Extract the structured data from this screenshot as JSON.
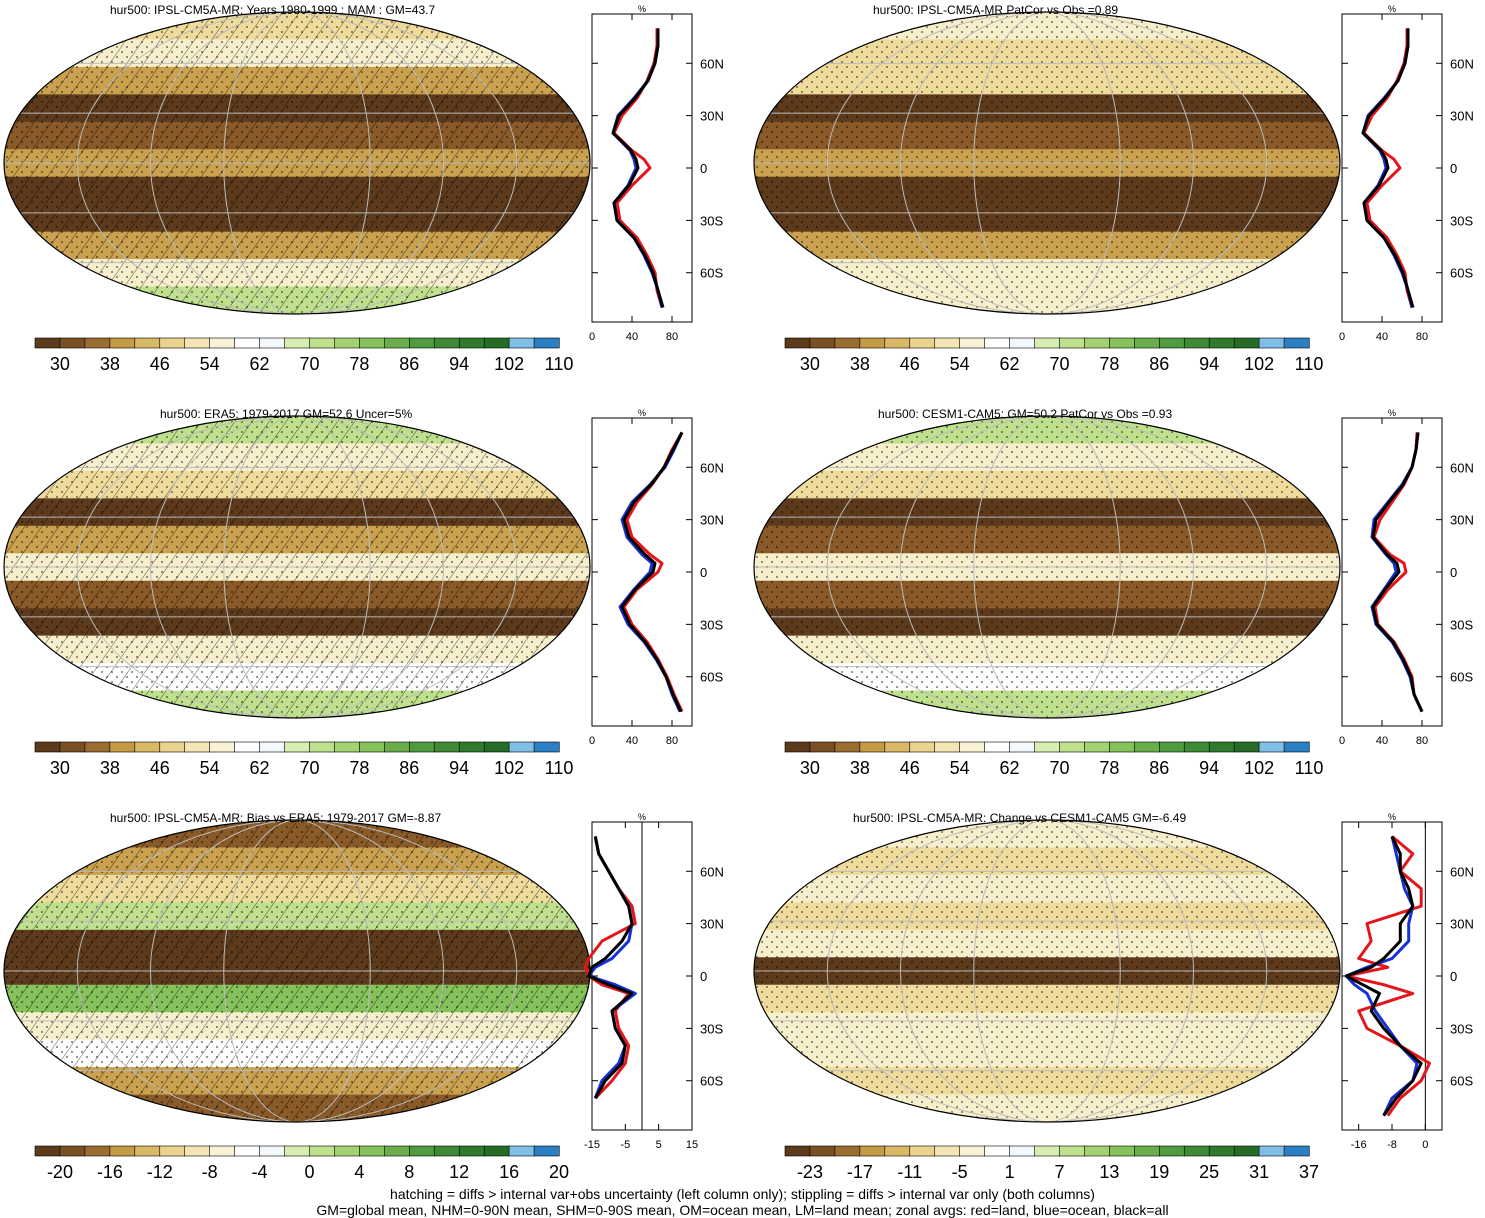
{
  "colors": {
    "brown_dark": "#5c3a1b",
    "brown_mid": "#8a5a28",
    "tan": "#c9a14f",
    "beige": "#efdc9c",
    "cream": "#f7efcb",
    "white": "#ffffff",
    "green_light": "#bfe08c",
    "green_mid": "#86c25b",
    "green_dark": "#3f8a35",
    "blue_light": "#7fbfe6",
    "blue_dark": "#2b7fc4",
    "zonal_land": "#e5161b",
    "zonal_ocean": "#1530d8",
    "zonal_all": "#000000"
  },
  "scales": {
    "abs": {
      "labels": [
        "30",
        "38",
        "46",
        "54",
        "62",
        "70",
        "78",
        "86",
        "94",
        "102",
        "110"
      ],
      "colors": [
        "#5c3a1b",
        "#7b4f24",
        "#9c6d31",
        "#c49a45",
        "#d9b866",
        "#e9d38f",
        "#f3e6b4",
        "#f8f1d6",
        "#ffffff",
        "#f3f8fc",
        "#d8eeb0",
        "#bfe08c",
        "#a3d272",
        "#86c25b",
        "#6aae4c",
        "#4f9c3e",
        "#3f8a35",
        "#2f7a2c",
        "#256b26",
        "#7fbfe6",
        "#2b7fc4"
      ]
    },
    "bias": {
      "labels": [
        "-20",
        "-16",
        "-12",
        "-8",
        "-4",
        "0",
        "4",
        "8",
        "12",
        "16",
        "20"
      ],
      "colors": [
        "#5c3a1b",
        "#7b4f24",
        "#9c6d31",
        "#c49a45",
        "#d9b866",
        "#e9d38f",
        "#f3e6b4",
        "#f8f1d6",
        "#ffffff",
        "#f3f8fc",
        "#d8eeb0",
        "#bfe08c",
        "#a3d272",
        "#86c25b",
        "#6aae4c",
        "#4f9c3e",
        "#3f8a35",
        "#2f7a2c",
        "#256b26",
        "#7fbfe6",
        "#2b7fc4"
      ]
    },
    "change": {
      "labels": [
        "-23",
        "-17",
        "-11",
        "-5",
        "1",
        "7",
        "13",
        "19",
        "25",
        "31",
        "37"
      ],
      "colors": [
        "#5c3a1b",
        "#7b4f24",
        "#9c6d31",
        "#c49a45",
        "#d9b866",
        "#e9d38f",
        "#f3e6b4",
        "#f8f1d6",
        "#ffffff",
        "#f3f8fc",
        "#d8eeb0",
        "#bfe08c",
        "#a3d272",
        "#86c25b",
        "#6aae4c",
        "#4f9c3e",
        "#3f8a35",
        "#2f7a2c",
        "#256b26",
        "#7fbfe6",
        "#2b7fc4"
      ]
    }
  },
  "lat_labels": [
    "60N",
    "30N",
    "0",
    "30S",
    "60S"
  ],
  "profile_unit": "%",
  "panels": [
    {
      "id": "model-climatology",
      "title": "hur500: IPSL-CM5A-MR: Years 1980-1999 : MAM : GM=43.7",
      "scale": "abs",
      "hatched": true,
      "bands": [
        "beige",
        "cream",
        "tan",
        "brown_dark",
        "brown_mid",
        "tan",
        "brown_dark",
        "brown_dark",
        "tan",
        "cream",
        "green_light"
      ],
      "profile": {
        "xticks": [
          "0",
          "40",
          "80"
        ],
        "xlim": [
          0,
          100
        ],
        "zero_line": false,
        "lat": [
          80,
          70,
          60,
          50,
          40,
          30,
          20,
          10,
          5,
          0,
          -10,
          -20,
          -30,
          -40,
          -50,
          -60,
          -70,
          -80
        ],
        "land": [
          65,
          65,
          62,
          55,
          45,
          30,
          22,
          40,
          52,
          58,
          40,
          25,
          28,
          45,
          55,
          63,
          65,
          70
        ],
        "ocean": [
          66,
          66,
          63,
          56,
          42,
          26,
          21,
          38,
          42,
          44,
          36,
          22,
          25,
          42,
          52,
          60,
          66,
          70
        ],
        "all": [
          66,
          66,
          63,
          56,
          43,
          27,
          21,
          39,
          44,
          46,
          37,
          22,
          25,
          42,
          53,
          61,
          66,
          71
        ]
      }
    },
    {
      "id": "model-pattern",
      "title": "hur500: IPSL-CM5A-MR PatCor vs Obs =0.89",
      "scale": "abs",
      "hatched": false,
      "bands": [
        "cream",
        "beige",
        "beige",
        "brown_dark",
        "brown_mid",
        "tan",
        "brown_dark",
        "brown_dark",
        "tan",
        "cream",
        "cream"
      ],
      "profile": {
        "xticks": [
          "0",
          "40",
          "80"
        ],
        "xlim": [
          0,
          100
        ],
        "zero_line": false,
        "lat": [
          80,
          70,
          60,
          50,
          40,
          30,
          20,
          10,
          5,
          0,
          -10,
          -20,
          -30,
          -40,
          -50,
          -60,
          -70,
          -80
        ],
        "land": [
          65,
          65,
          62,
          55,
          45,
          30,
          22,
          40,
          52,
          58,
          40,
          25,
          28,
          45,
          55,
          63,
          65,
          70
        ],
        "ocean": [
          66,
          66,
          63,
          56,
          42,
          26,
          21,
          38,
          42,
          44,
          36,
          22,
          25,
          42,
          52,
          60,
          66,
          70
        ],
        "all": [
          66,
          66,
          63,
          56,
          43,
          27,
          21,
          39,
          44,
          46,
          37,
          22,
          25,
          42,
          53,
          61,
          66,
          71
        ]
      }
    },
    {
      "id": "obs-climatology",
      "title": "hur500: ERA5: 1979-2017 GM=52.6 Uncer=5%",
      "scale": "abs",
      "hatched": true,
      "bands": [
        "green_light",
        "cream",
        "beige",
        "brown_dark",
        "tan",
        "cream",
        "brown_mid",
        "brown_dark",
        "cream",
        "white",
        "green_light"
      ],
      "profile": {
        "xticks": [
          "0",
          "40",
          "80"
        ],
        "xlim": [
          0,
          100
        ],
        "zero_line": false,
        "lat": [
          80,
          70,
          60,
          50,
          40,
          30,
          20,
          10,
          5,
          0,
          -10,
          -20,
          -30,
          -40,
          -50,
          -60,
          -70,
          -80
        ],
        "land": [
          90,
          80,
          72,
          60,
          45,
          35,
          40,
          58,
          70,
          66,
          45,
          32,
          40,
          55,
          66,
          75,
          82,
          90
        ],
        "ocean": [
          90,
          82,
          73,
          58,
          40,
          30,
          35,
          50,
          60,
          58,
          42,
          28,
          36,
          52,
          64,
          74,
          80,
          88
        ],
        "all": [
          90,
          81,
          72,
          59,
          42,
          32,
          37,
          53,
          63,
          61,
          43,
          30,
          38,
          53,
          65,
          74,
          81,
          89
        ]
      }
    },
    {
      "id": "obs-pattern",
      "title": "hur500: CESM1-CAM5: GM=50.2 PatCor vs Obs =0.93",
      "scale": "abs",
      "hatched": false,
      "bands": [
        "green_light",
        "cream",
        "beige",
        "brown_dark",
        "brown_mid",
        "cream",
        "brown_mid",
        "brown_dark",
        "cream",
        "white",
        "green_light"
      ],
      "profile": {
        "xticks": [
          "0",
          "40",
          "80"
        ],
        "xlim": [
          0,
          100
        ],
        "zero_line": false,
        "lat": [
          80,
          70,
          60,
          50,
          40,
          30,
          20,
          10,
          5,
          0,
          -10,
          -20,
          -30,
          -40,
          -50,
          -60,
          -70,
          -80
        ],
        "land": [
          75,
          74,
          70,
          62,
          50,
          38,
          32,
          48,
          62,
          64,
          46,
          33,
          36,
          52,
          62,
          70,
          72,
          80
        ],
        "ocean": [
          76,
          74,
          70,
          60,
          46,
          32,
          30,
          44,
          52,
          54,
          42,
          30,
          34,
          50,
          60,
          68,
          72,
          80
        ],
        "all": [
          76,
          74,
          70,
          61,
          47,
          34,
          31,
          45,
          55,
          57,
          43,
          31,
          35,
          51,
          61,
          69,
          72,
          80
        ]
      }
    },
    {
      "id": "model-bias",
      "title": "hur500: IPSL-CM5A-MR: Bias vs ERA5: 1979-2017 GM=-8.87",
      "scale": "bias",
      "hatched": true,
      "bands": [
        "brown_mid",
        "tan",
        "beige",
        "green_light",
        "brown_dark",
        "brown_dark",
        "green_mid",
        "cream",
        "white",
        "tan",
        "brown_mid"
      ],
      "profile": {
        "xticks": [
          "-15",
          "-5",
          "5",
          "15"
        ],
        "xlim": [
          -15,
          15
        ],
        "zero_line": true,
        "lat": [
          80,
          70,
          60,
          50,
          40,
          30,
          20,
          10,
          5,
          0,
          -5,
          -10,
          -20,
          -30,
          -40,
          -50,
          -60,
          -70
        ],
        "land": [
          -14,
          -13,
          -10,
          -7,
          -3,
          -2,
          -12,
          -16,
          -17,
          -16,
          -12,
          -4,
          -8,
          -7,
          -4,
          -5,
          -9,
          -14
        ],
        "ocean": [
          -14,
          -13,
          -10,
          -7,
          -4,
          -3,
          -4,
          -9,
          -14,
          -16,
          -8,
          -2,
          -9,
          -8,
          -5,
          -7,
          -12,
          -14
        ],
        "all": [
          -14,
          -13,
          -10,
          -7,
          -4,
          -3,
          -6,
          -11,
          -15,
          -16,
          -10,
          -3,
          -9,
          -8,
          -5,
          -6,
          -11,
          -14
        ]
      }
    },
    {
      "id": "model-change",
      "title": "hur500: IPSL-CM5A-MR: Change vs CESM1-CAM5 GM=-6.49",
      "scale": "change",
      "hatched": false,
      "bands": [
        "cream",
        "beige",
        "cream",
        "beige",
        "cream",
        "brown_dark",
        "beige",
        "cream",
        "cream",
        "beige",
        "cream"
      ],
      "profile": {
        "xticks": [
          "-16",
          "-8",
          "0"
        ],
        "xlim": [
          -20,
          4
        ],
        "zero_line": true,
        "lat": [
          80,
          70,
          60,
          50,
          40,
          30,
          20,
          10,
          5,
          0,
          -5,
          -10,
          -20,
          -30,
          -40,
          -50,
          -60,
          -70,
          -80
        ],
        "land": [
          -8,
          -3,
          -6,
          -1,
          -1,
          -14,
          -13,
          -16,
          -9,
          -19,
          -10,
          -3,
          -16,
          -14,
          -6,
          1,
          -1,
          -6,
          -9
        ],
        "ocean": [
          -8,
          -7,
          -6,
          -5,
          -3,
          -4,
          -4,
          -8,
          -14,
          -19,
          -17,
          -14,
          -12,
          -9,
          -6,
          -2,
          -3,
          -8,
          -10
        ],
        "all": [
          -8,
          -6,
          -6,
          -4,
          -3,
          -6,
          -6,
          -10,
          -13,
          -19,
          -15,
          -11,
          -13,
          -10,
          -6,
          -1,
          -3,
          -7,
          -10
        ]
      }
    }
  ],
  "footer": {
    "line1": "hatching = diffs > internal var+obs uncertainty (left column only); stippling = diffs > internal var only (both columns)",
    "line2": "GM=global mean, NHM=0-90N mean, SHM=0-90S mean, OM=ocean mean, LM=land mean; zonal avgs: red=land, blue=ocean, black=all"
  }
}
